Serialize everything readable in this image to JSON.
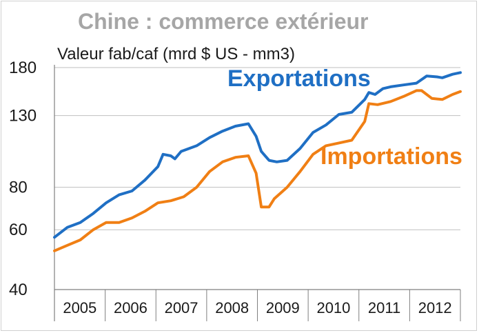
{
  "chart_data": {
    "type": "line",
    "title": "Chine : commerce extérieur",
    "ylabel": "Valeur fab/caf (mrd $ US - mm3)",
    "y_scale": "log",
    "ylim": [
      40,
      180
    ],
    "yticks": [
      40,
      60,
      80,
      130,
      180
    ],
    "ytick_labels": [
      "40",
      "60",
      "80",
      "130",
      "180"
    ],
    "x_categories": [
      "2005",
      "2006",
      "2007",
      "2008",
      "2009",
      "2010",
      "2011",
      "2012"
    ],
    "x_range": [
      2005.0,
      2012.85
    ],
    "grid": "horizontal",
    "colors": {
      "exports": "#1f6fc4",
      "imports": "#f07f14",
      "title": "#a6a6a6"
    },
    "series": [
      {
        "name": "Exportations",
        "color": "#1f6fc4",
        "points": [
          [
            2005.0,
            57
          ],
          [
            2005.25,
            61
          ],
          [
            2005.5,
            63
          ],
          [
            2005.75,
            67
          ],
          [
            2006.0,
            72
          ],
          [
            2006.25,
            76
          ],
          [
            2006.5,
            78
          ],
          [
            2006.75,
            84
          ],
          [
            2007.0,
            92
          ],
          [
            2007.1,
            100
          ],
          [
            2007.25,
            99
          ],
          [
            2007.33,
            97
          ],
          [
            2007.45,
            102
          ],
          [
            2007.75,
            106
          ],
          [
            2008.0,
            112
          ],
          [
            2008.25,
            117
          ],
          [
            2008.5,
            121
          ],
          [
            2008.75,
            123
          ],
          [
            2008.9,
            113
          ],
          [
            2009.0,
            102
          ],
          [
            2009.15,
            96
          ],
          [
            2009.3,
            95
          ],
          [
            2009.5,
            96
          ],
          [
            2009.75,
            104
          ],
          [
            2010.0,
            116
          ],
          [
            2010.25,
            122
          ],
          [
            2010.5,
            131
          ],
          [
            2010.75,
            133
          ],
          [
            2011.0,
            145
          ],
          [
            2011.08,
            152
          ],
          [
            2011.2,
            150
          ],
          [
            2011.35,
            156
          ],
          [
            2011.5,
            158
          ],
          [
            2011.75,
            160
          ],
          [
            2012.0,
            162
          ],
          [
            2012.2,
            170
          ],
          [
            2012.4,
            169
          ],
          [
            2012.5,
            168
          ],
          [
            2012.7,
            172
          ],
          [
            2012.85,
            174
          ]
        ]
      },
      {
        "name": "Importations",
        "color": "#f07f14",
        "points": [
          [
            2005.0,
            52
          ],
          [
            2005.25,
            54
          ],
          [
            2005.5,
            56
          ],
          [
            2005.75,
            60
          ],
          [
            2006.0,
            63
          ],
          [
            2006.25,
            63
          ],
          [
            2006.5,
            65
          ],
          [
            2006.75,
            68
          ],
          [
            2007.0,
            72
          ],
          [
            2007.25,
            73
          ],
          [
            2007.5,
            75
          ],
          [
            2007.75,
            80
          ],
          [
            2008.0,
            89
          ],
          [
            2008.25,
            95
          ],
          [
            2008.5,
            98
          ],
          [
            2008.75,
            99
          ],
          [
            2008.9,
            88
          ],
          [
            2009.0,
            70
          ],
          [
            2009.15,
            70
          ],
          [
            2009.25,
            74
          ],
          [
            2009.5,
            80
          ],
          [
            2009.75,
            89
          ],
          [
            2010.0,
            100
          ],
          [
            2010.25,
            106
          ],
          [
            2010.5,
            108
          ],
          [
            2010.75,
            110
          ],
          [
            2011.0,
            125
          ],
          [
            2011.08,
            141
          ],
          [
            2011.25,
            140
          ],
          [
            2011.5,
            143
          ],
          [
            2011.75,
            148
          ],
          [
            2012.0,
            154
          ],
          [
            2012.1,
            154
          ],
          [
            2012.3,
            146
          ],
          [
            2012.5,
            145
          ],
          [
            2012.7,
            150
          ],
          [
            2012.85,
            153
          ]
        ]
      }
    ]
  }
}
